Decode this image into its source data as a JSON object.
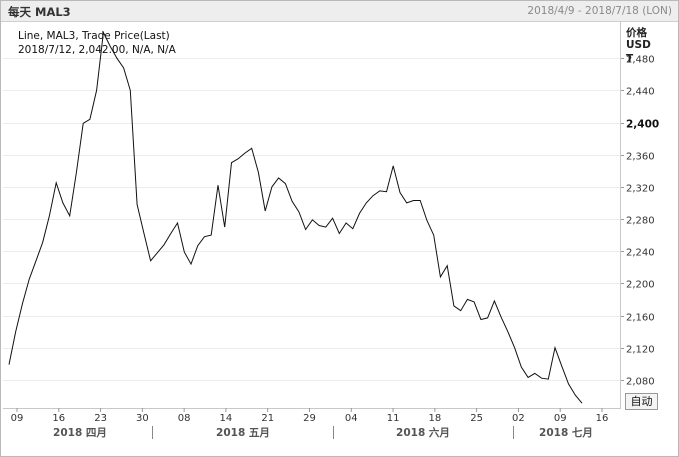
{
  "window": {
    "title": "每天 MAL3",
    "date_range": "2018/4/9 - 2018/7/18 (LON)"
  },
  "legend": {
    "line1": "Line, MAL3, Trade Price(Last)",
    "line2": "2018/7/12, 2,042.00, N/A, N/A"
  },
  "axis": {
    "unit_line1": "价格",
    "unit_line2": "USD",
    "unit_line3": "T",
    "auto_button": "自动"
  },
  "chart_data": {
    "type": "line",
    "title": "",
    "xlabel": "",
    "ylabel": "价格 USD T",
    "ylim": [
      2045,
      2525
    ],
    "y_ticks": [
      2080,
      2120,
      2160,
      2200,
      2240,
      2280,
      2320,
      2360,
      2400,
      2440,
      2480
    ],
    "y_tick_labels": [
      "2,080",
      "2,120",
      "2,160",
      "2,200",
      "2,240",
      "2,280",
      "2,320",
      "2,360",
      "2,400",
      "2,440",
      "2,480"
    ],
    "y_tick_bold": "2,400",
    "x_tick_labels": [
      "09",
      "16",
      "23",
      "30",
      "08",
      "14",
      "21",
      "29",
      "04",
      "11",
      "18",
      "25",
      "02",
      "09",
      "16"
    ],
    "month_labels": [
      "2018 四月",
      "2018 五月",
      "2018 六月",
      "2018 七月"
    ],
    "series": [
      {
        "values": [
          2099,
          2140,
          2175,
          2205,
          2228,
          2251,
          2284,
          2325,
          2300,
          2284,
          2338,
          2399,
          2404,
          2440,
          2512,
          2495,
          2480,
          2468,
          2440,
          2298,
          2263,
          2228,
          2238,
          2248,
          2262,
          2275,
          2239,
          2224,
          2247,
          2258,
          2260,
          2322,
          2270,
          2350,
          2355,
          2362,
          2368,
          2338,
          2290,
          2320,
          2331,
          2324,
          2302,
          2289,
          2267,
          2279,
          2272,
          2270,
          2281,
          2262,
          2275,
          2268,
          2287,
          2300,
          2309,
          2315,
          2314,
          2346,
          2313,
          2300,
          2303,
          2303,
          2278,
          2260,
          2208,
          2222,
          2172,
          2166,
          2180,
          2177,
          2155,
          2157,
          2178,
          2158,
          2140,
          2120,
          2096,
          2083,
          2088,
          2082,
          2081,
          2120,
          2097,
          2075,
          2061,
          2051
        ]
      }
    ]
  }
}
